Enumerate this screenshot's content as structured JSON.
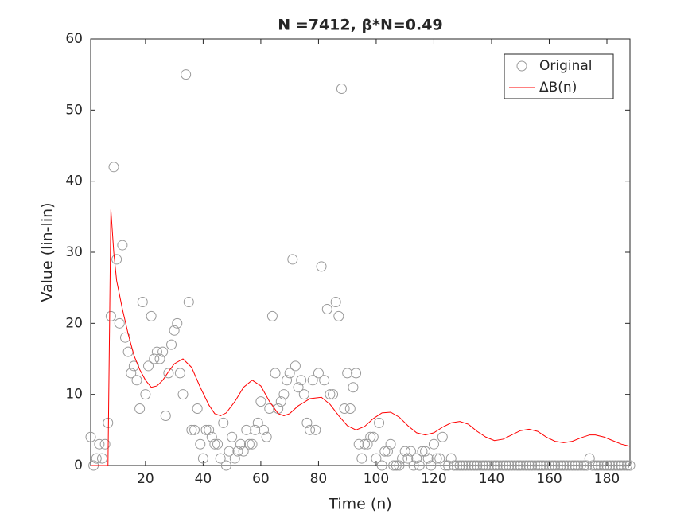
{
  "chart_data": {
    "type": "scatter-line",
    "title": "N =7412, β*N=0.49",
    "xlabel": "Time (n)",
    "ylabel": "Value (lin-lin)",
    "xlim": [
      1,
      188
    ],
    "xticks": [
      20,
      40,
      60,
      80,
      100,
      120,
      140,
      160,
      180
    ],
    "ylim": [
      0,
      60
    ],
    "yticks": [
      0,
      10,
      20,
      30,
      40,
      50,
      60
    ],
    "legend": "northeast",
    "series": [
      {
        "name": "Original",
        "kind": "scatter",
        "color": "#999999",
        "x": [
          1,
          2,
          3,
          4,
          5,
          6,
          7,
          8,
          9,
          10,
          11,
          12,
          13,
          14,
          15,
          16,
          17,
          18,
          19,
          20,
          21,
          22,
          23,
          24,
          25,
          26,
          27,
          28,
          29,
          30,
          31,
          32,
          33,
          34,
          35,
          36,
          37,
          38,
          39,
          40,
          41,
          42,
          43,
          44,
          45,
          46,
          47,
          48,
          49,
          50,
          51,
          52,
          53,
          54,
          55,
          56,
          57,
          58,
          59,
          60,
          61,
          62,
          63,
          64,
          65,
          66,
          67,
          68,
          69,
          70,
          71,
          72,
          73,
          74,
          75,
          76,
          77,
          78,
          79,
          80,
          81,
          82,
          83,
          84,
          85,
          86,
          87,
          88,
          89,
          90,
          91,
          92,
          93,
          94,
          95,
          96,
          97,
          98,
          99,
          100,
          101,
          102,
          103,
          104,
          105,
          106,
          107,
          108,
          109,
          110,
          111,
          112,
          113,
          114,
          115,
          116,
          117,
          118,
          119,
          120,
          121,
          122,
          123,
          124,
          125,
          126,
          127,
          128,
          129,
          130,
          131,
          132,
          133,
          134,
          135,
          136,
          137,
          138,
          139,
          140,
          141,
          142,
          143,
          144,
          145,
          146,
          147,
          148,
          149,
          150,
          151,
          152,
          153,
          154,
          155,
          156,
          157,
          158,
          159,
          160,
          161,
          162,
          163,
          164,
          165,
          166,
          167,
          168,
          169,
          170,
          171,
          172,
          173,
          174,
          175,
          176,
          177,
          178,
          179,
          180,
          181,
          182,
          183,
          184,
          185,
          186,
          187,
          188
        ],
        "values": [
          4,
          0,
          1,
          3,
          1,
          3,
          6,
          21,
          42,
          29,
          20,
          31,
          18,
          16,
          13,
          14,
          12,
          8,
          23,
          10,
          14,
          21,
          15,
          16,
          15,
          16,
          7,
          13,
          17,
          19,
          20,
          13,
          10,
          55,
          23,
          5,
          5,
          8,
          3,
          1,
          5,
          5,
          4,
          3,
          3,
          1,
          6,
          0,
          2,
          4,
          1,
          2,
          3,
          2,
          5,
          3,
          3,
          5,
          6,
          9,
          5,
          4,
          8,
          21,
          13,
          8,
          9,
          10,
          12,
          13,
          29,
          14,
          11,
          12,
          10,
          6,
          5,
          12,
          5,
          13,
          28,
          12,
          22,
          10,
          10,
          23,
          21,
          53,
          8,
          13,
          8,
          11,
          13,
          3,
          1,
          3,
          3,
          4,
          4,
          1,
          6,
          0,
          2,
          2,
          3,
          0,
          0,
          0,
          1,
          2,
          1,
          2,
          0,
          1,
          0,
          2,
          2,
          1,
          0,
          3,
          1,
          1,
          4,
          0,
          0,
          1,
          0,
          0,
          0,
          0,
          0,
          0,
          0,
          0,
          0,
          0,
          0,
          0,
          0,
          0,
          0,
          0,
          0,
          0,
          0,
          0,
          0,
          0,
          0,
          0,
          0,
          0,
          0,
          0,
          0,
          0,
          0,
          0,
          0,
          0,
          0,
          0,
          0,
          0,
          0,
          0,
          0,
          0,
          0,
          0,
          0,
          0,
          0,
          1,
          0,
          0,
          0,
          0,
          0,
          0,
          0,
          0,
          0,
          0,
          0,
          0,
          0,
          0
        ]
      },
      {
        "name": "ΔB(n)",
        "kind": "line",
        "color": "#ff0000",
        "x": [
          1,
          7,
          8,
          9,
          10,
          12,
          14,
          16,
          18,
          20,
          22,
          24,
          26,
          28,
          30,
          33,
          36,
          39,
          42,
          44,
          46,
          48,
          51,
          54,
          57,
          60,
          63,
          66,
          68,
          70,
          73,
          77,
          81,
          84,
          87,
          90,
          93,
          96,
          99,
          102,
          105,
          108,
          111,
          114,
          117,
          120,
          123,
          126,
          129,
          132,
          135,
          138,
          141,
          144,
          147,
          150,
          153,
          156,
          159,
          162,
          165,
          168,
          171,
          174,
          176,
          179,
          182,
          185,
          188
        ],
        "values": [
          0,
          0,
          36,
          30,
          26,
          22,
          18.5,
          15.5,
          13.5,
          12,
          11,
          11.2,
          12,
          13.2,
          14.3,
          15,
          13.8,
          11,
          8.5,
          7.3,
          7,
          7.4,
          9,
          11,
          12,
          11.2,
          9,
          7.3,
          7,
          7.3,
          8.4,
          9.4,
          9.6,
          8.6,
          7,
          5.6,
          5,
          5.5,
          6.6,
          7.4,
          7.5,
          6.8,
          5.6,
          4.6,
          4.3,
          4.6,
          5.4,
          6,
          6.2,
          5.8,
          4.8,
          4,
          3.5,
          3.7,
          4.3,
          4.9,
          5.1,
          4.8,
          4,
          3.4,
          3.2,
          3.4,
          3.9,
          4.3,
          4.3,
          4,
          3.5,
          3,
          2.7
        ]
      }
    ]
  }
}
